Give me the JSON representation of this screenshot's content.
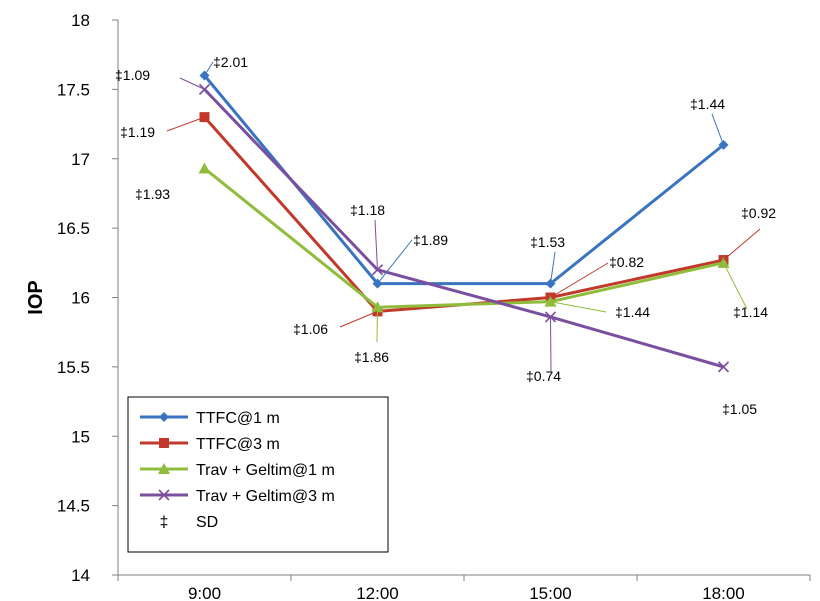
{
  "chart_data": {
    "type": "line",
    "ylabel": "IOP",
    "xlabel": "",
    "ylim": [
      14,
      18
    ],
    "yticks": [
      "14",
      "14.5",
      "15",
      "15.5",
      "16",
      "16.5",
      "17",
      "17.5",
      "18"
    ],
    "categories": [
      "9:00",
      "12:00",
      "15:00",
      "18:00"
    ],
    "grid": false,
    "legend_position": "bottom-left",
    "series": [
      {
        "name": "TTFC@1 m",
        "color": "#3a74c0",
        "marker": "diamond",
        "values": [
          17.6,
          16.1,
          16.1,
          17.1
        ]
      },
      {
        "name": "TTFC@3 m",
        "color": "#c0392b",
        "marker": "square",
        "values": [
          17.3,
          15.9,
          16.0,
          16.27
        ]
      },
      {
        "name": "Trav + Geltim@1 m",
        "color": "#8fbc3a",
        "marker": "triangle",
        "values": [
          16.93,
          15.93,
          15.97,
          16.25
        ]
      },
      {
        "name": "Trav + Geltim@3 m",
        "color": "#7b4fa0",
        "marker": "x",
        "values": [
          17.5,
          16.2,
          15.86,
          15.5
        ]
      }
    ],
    "sd_legend": {
      "symbol": "‡",
      "label": "SD"
    },
    "annotations": [
      {
        "text": "‡2.01",
        "series": 0,
        "point": 0
      },
      {
        "text": "‡1.09",
        "series": 3,
        "point": 0
      },
      {
        "text": "‡1.19",
        "series": 1,
        "point": 0
      },
      {
        "text": "‡1.93",
        "series": 2,
        "point": 0
      },
      {
        "text": "‡1.18",
        "series": 3,
        "point": 1
      },
      {
        "text": "‡1.89",
        "series": 0,
        "point": 1
      },
      {
        "text": "‡1.06",
        "series": 1,
        "point": 1
      },
      {
        "text": "‡1.86",
        "series": 2,
        "point": 1
      },
      {
        "text": "‡1.53",
        "series": 0,
        "point": 2
      },
      {
        "text": "‡0.82",
        "series": 1,
        "point": 2
      },
      {
        "text": "‡1.44",
        "series": 2,
        "point": 2
      },
      {
        "text": "‡0.74",
        "series": 3,
        "point": 2
      },
      {
        "text": "‡1.44",
        "series": 0,
        "point": 3
      },
      {
        "text": "‡0.92",
        "series": 1,
        "point": 3
      },
      {
        "text": "‡1.14",
        "series": 2,
        "point": 3
      },
      {
        "text": "‡1.05",
        "series": 3,
        "point": 3
      }
    ]
  }
}
